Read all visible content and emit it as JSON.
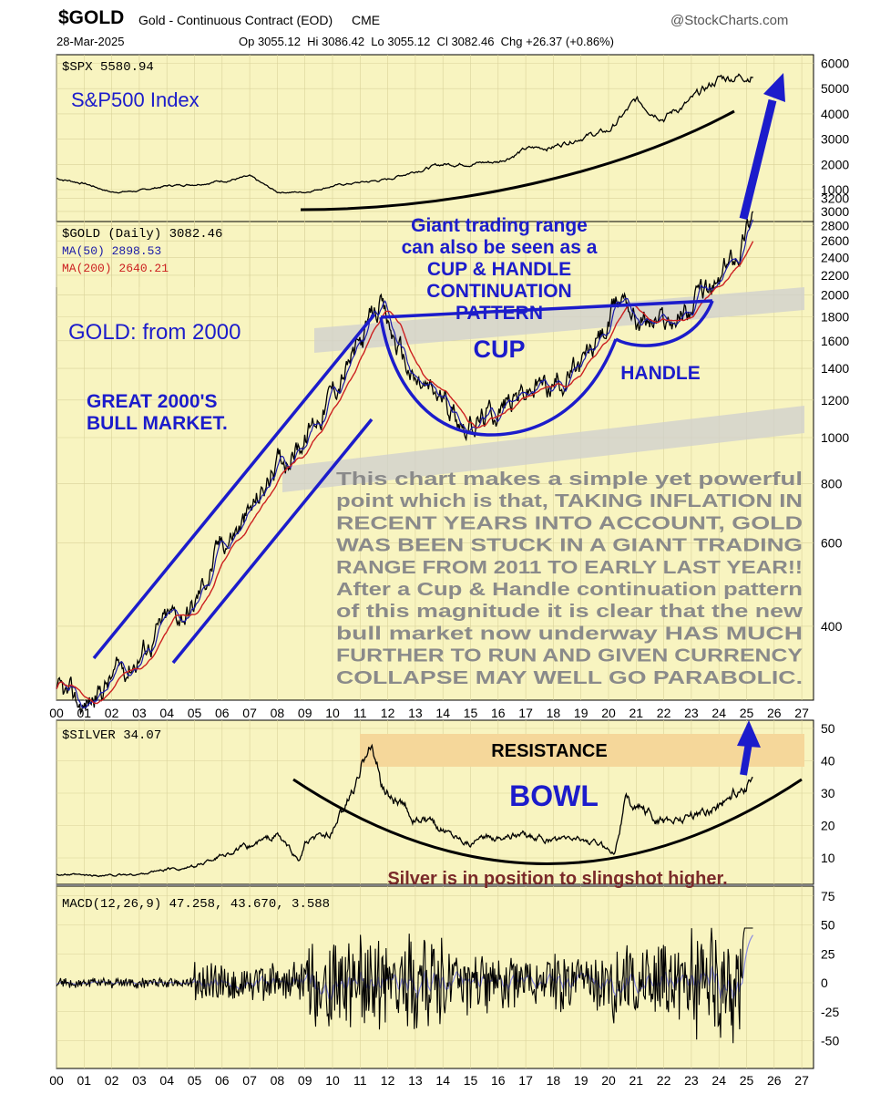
{
  "header": {
    "symbol": "$GOLD",
    "name": "Gold - Continuous Contract (EOD)",
    "exchange": "CME",
    "source": "@StockCharts.com",
    "date": "28-Mar-2025",
    "ohlc": "Op 3055.12  Hi 3086.42  Lo 3055.12  Cl 3082.46  Chg +26.37 (+0.86%)"
  },
  "colors": {
    "panel_bg": "#f8f4c0",
    "annotation_blue": "#1c1ccb",
    "ma50": "#1a1aa8",
    "ma200": "#cc2020",
    "note_text": "#8a8a8a",
    "silver_note": "#7a2a2a",
    "resistance_band": "#f5d79a",
    "range_band": "#cfcfcf"
  },
  "chart_data": [
    {
      "type": "line",
      "panel": "spx",
      "legend": "$SPX 5580.94",
      "title": "S&P500 Index",
      "yticks": [
        "6000",
        "5000",
        "4000",
        "3000",
        "2000",
        "1000"
      ],
      "x": [
        2000,
        2001,
        2002,
        2003,
        2004,
        2005,
        2006,
        2007,
        2008,
        2009,
        2010,
        2011,
        2012,
        2013,
        2014,
        2015,
        2016,
        2017,
        2018,
        2019,
        2020,
        2021,
        2022,
        2023,
        2024,
        2025.24
      ],
      "values": [
        1450,
        1250,
        900,
        950,
        1150,
        1220,
        1350,
        1500,
        900,
        900,
        1150,
        1280,
        1400,
        1750,
        2000,
        2050,
        2100,
        2600,
        2700,
        3100,
        3300,
        4500,
        3900,
        4500,
        5400,
        5580.94
      ]
    },
    {
      "type": "line",
      "panel": "gold",
      "legend": [
        "$GOLD (Daily) 3082.46",
        "MA(50) 2898.53",
        "MA(200) 2640.21"
      ],
      "title": "GOLD: from 2000",
      "yticks": [
        "3200",
        "3000",
        "2800",
        "2600",
        "2400",
        "2200",
        "2000",
        "1800",
        "1600",
        "1400",
        "1200",
        "1000",
        "800",
        "600",
        "400"
      ],
      "x": [
        2000,
        2001,
        2002,
        2003,
        2004,
        2005,
        2006,
        2007,
        2008,
        2009,
        2010,
        2011,
        2011.7,
        2012,
        2013,
        2014,
        2015,
        2016,
        2017,
        2018,
        2019,
        2020,
        2020.6,
        2021,
        2022,
        2023,
        2024,
        2024.8,
        2025.24
      ],
      "values": [
        285,
        270,
        310,
        350,
        410,
        440,
        600,
        680,
        880,
        1000,
        1250,
        1550,
        1900,
        1700,
        1300,
        1200,
        1060,
        1150,
        1250,
        1300,
        1400,
        1700,
        2050,
        1800,
        1750,
        1900,
        2100,
        2600,
        3082.46
      ],
      "annotations": {
        "range_note": [
          "Giant trading range",
          "can also be seen as a",
          "CUP & HANDLE",
          "CONTINUATION",
          "PATTERN"
        ],
        "cup": "CUP",
        "handle": "HANDLE",
        "bull_market": [
          "GREAT 2000'S",
          "BULL MARKET."
        ],
        "commentary": [
          "This chart makes a simple yet powerful",
          "point which is that, TAKING INFLATION IN",
          "RECENT YEARS INTO ACCOUNT, GOLD",
          "WAS BEEN STUCK IN A GIANT TRADING",
          "RANGE FROM 2011 TO EARLY LAST YEAR!!",
          "After a Cup & Handle continuation pattern",
          "of this magnitude it is clear that the new",
          "bull market now underway HAS MUCH",
          "FURTHER TO RUN AND GIVEN CURRENCY",
          "COLLAPSE MAY WELL GO PARABOLIC."
        ]
      }
    },
    {
      "type": "line",
      "panel": "silver",
      "legend": "$SILVER 34.07",
      "yticks": [
        "50",
        "40",
        "30",
        "20",
        "10"
      ],
      "x": [
        2000,
        2001,
        2002,
        2003,
        2004,
        2005,
        2006,
        2007,
        2008,
        2008.8,
        2009,
        2010,
        2011,
        2011.3,
        2011.8,
        2012,
        2013,
        2014,
        2015,
        2016,
        2017,
        2018,
        2019,
        2020.2,
        2020.6,
        2021,
        2022,
        2023,
        2024,
        2025.24
      ],
      "values": [
        5,
        4.5,
        4.6,
        4.9,
        6.5,
        7.2,
        11,
        13.5,
        17,
        9,
        14,
        18,
        35,
        48,
        32,
        30,
        22,
        19,
        15,
        17,
        17,
        15,
        16,
        12,
        28,
        26,
        21,
        23,
        26,
        34.07
      ],
      "annotations": {
        "resistance": "RESISTANCE",
        "bowl": "BOWL",
        "note": "Silver is in position to slingshot higher."
      }
    },
    {
      "type": "line",
      "panel": "macd",
      "legend": "MACD(12,26,9) 47.258, 43.670, 3.588",
      "yticks": [
        "75",
        "50",
        "25",
        "0",
        "-25",
        "-50"
      ],
      "macd": 47.258,
      "signal": 43.67,
      "histogram": 3.588
    }
  ],
  "x_axis": {
    "ticks": [
      "00",
      "01",
      "02",
      "03",
      "04",
      "05",
      "06",
      "07",
      "08",
      "09",
      "10",
      "11",
      "12",
      "13",
      "14",
      "15",
      "16",
      "17",
      "18",
      "19",
      "20",
      "21",
      "22",
      "23",
      "24",
      "25",
      "26",
      "27"
    ]
  }
}
